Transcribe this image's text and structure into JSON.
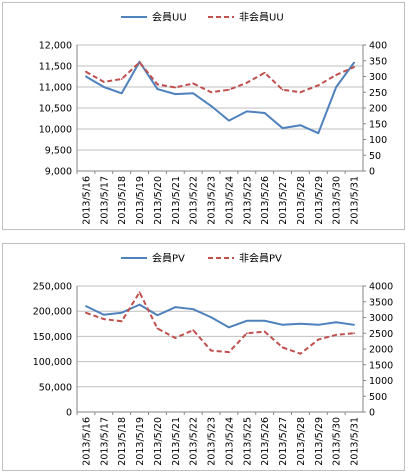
{
  "chart_data": [
    {
      "type": "line",
      "categories": [
        "2013/5/16",
        "2013/5/17",
        "2013/5/18",
        "2013/5/19",
        "2013/5/20",
        "2013/5/21",
        "2013/5/22",
        "2013/5/23",
        "2013/5/24",
        "2013/5/25",
        "2013/5/26",
        "2013/5/27",
        "2013/5/28",
        "2013/5/29",
        "2013/5/30",
        "2013/5/31"
      ],
      "series": [
        {
          "name": "会員UU",
          "axis": "left",
          "color": "#4f81bd",
          "style": "solid",
          "values": [
            11250,
            11000,
            10850,
            11600,
            10950,
            10830,
            10850,
            10550,
            10200,
            10420,
            10380,
            10020,
            10090,
            9900,
            11000,
            11580
          ]
        },
        {
          "name": "非会員UU",
          "axis": "right",
          "color": "#c0504d",
          "style": "dashed",
          "values": [
            315,
            283,
            292,
            345,
            275,
            265,
            278,
            250,
            258,
            280,
            312,
            258,
            250,
            272,
            305,
            330
          ]
        }
      ],
      "left_axis": {
        "min": 9000,
        "max": 12000,
        "ticks": [
          "9,000",
          "9,500",
          "10,000",
          "10,500",
          "11,000",
          "11,500",
          "12,000"
        ]
      },
      "right_axis": {
        "min": 0,
        "max": 400,
        "ticks": [
          "0",
          "50",
          "100",
          "150",
          "200",
          "250",
          "300",
          "350",
          "400"
        ]
      },
      "legend": "top",
      "grid": true
    },
    {
      "type": "line",
      "categories": [
        "2013/5/16",
        "2013/5/17",
        "2013/5/18",
        "2013/5/19",
        "2013/5/20",
        "2013/5/21",
        "2013/5/22",
        "2013/5/23",
        "2013/5/24",
        "2013/5/25",
        "2013/5/26",
        "2013/5/27",
        "2013/5/28",
        "2013/5/29",
        "2013/5/30",
        "2013/5/31"
      ],
      "series": [
        {
          "name": "会員PV",
          "axis": "left",
          "color": "#4f81bd",
          "style": "solid",
          "values": [
            210000,
            193000,
            197000,
            213000,
            192000,
            208000,
            204000,
            188000,
            168000,
            181000,
            181000,
            173000,
            175000,
            173000,
            178000,
            173000
          ]
        },
        {
          "name": "非会員PV",
          "axis": "right",
          "color": "#c0504d",
          "style": "dashed",
          "values": [
            3150,
            2950,
            2880,
            3800,
            2650,
            2350,
            2600,
            1950,
            1900,
            2500,
            2550,
            2050,
            1850,
            2300,
            2450,
            2500
          ]
        }
      ],
      "left_axis": {
        "min": 0,
        "max": 250000,
        "ticks": [
          "0",
          "50,000",
          "100,000",
          "150,000",
          "200,000",
          "250,000"
        ]
      },
      "right_axis": {
        "min": 0,
        "max": 4000,
        "ticks": [
          "0",
          "500",
          "1000",
          "1500",
          "2000",
          "2500",
          "3000",
          "3500",
          "4000"
        ]
      },
      "legend": "top",
      "grid": true
    }
  ]
}
